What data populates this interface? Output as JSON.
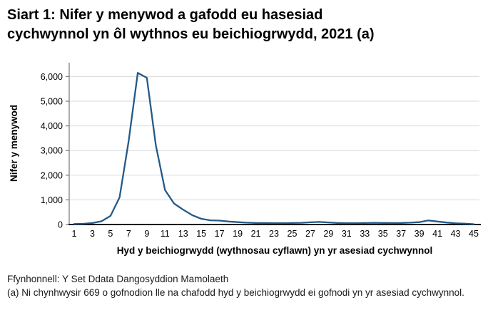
{
  "title": "Siart 1: Nifer y menywod a gafodd eu hasesiad cychwynnol yn ôl wythnos eu beichiogrwydd, 2021 (a)",
  "chart_data": {
    "type": "line",
    "title": "Siart 1: Nifer y menywod a gafodd eu hasesiad cychwynnol yn ôl wythnos eu beichiogrwydd, 2021 (a)",
    "xlabel": "Hyd y beichiogrwydd (wythnosau cyflawn) yn yr asesiad cychwynnol",
    "ylabel": "Nifer y menywod",
    "x": [
      1,
      2,
      3,
      4,
      5,
      6,
      7,
      8,
      9,
      10,
      11,
      12,
      13,
      14,
      15,
      16,
      17,
      18,
      19,
      20,
      21,
      22,
      23,
      24,
      25,
      26,
      27,
      28,
      29,
      30,
      31,
      32,
      33,
      34,
      35,
      36,
      37,
      38,
      39,
      40,
      41,
      42,
      43,
      44,
      45
    ],
    "series": [
      {
        "name": "Nifer y menywod",
        "values": [
          20,
          30,
          60,
          130,
          350,
          1100,
          3400,
          6150,
          5950,
          3200,
          1400,
          850,
          600,
          380,
          230,
          170,
          160,
          120,
          95,
          75,
          65,
          60,
          55,
          55,
          60,
          70,
          90,
          105,
          85,
          65,
          55,
          55,
          60,
          70,
          65,
          60,
          65,
          75,
          95,
          165,
          120,
          80,
          50,
          35,
          15
        ]
      }
    ],
    "ylim": [
      0,
      6000
    ],
    "yticks": [
      0,
      1000,
      2000,
      3000,
      4000,
      5000,
      6000
    ],
    "ytick_labels": [
      "0",
      "1,000",
      "2,000",
      "3,000",
      "4,000",
      "5,000",
      "6,000"
    ],
    "xticks": [
      1,
      3,
      5,
      7,
      9,
      11,
      13,
      15,
      17,
      19,
      21,
      23,
      25,
      27,
      29,
      31,
      33,
      35,
      37,
      39,
      41,
      43,
      45
    ],
    "grid": "horizontal",
    "legend": "none"
  },
  "colors": {
    "line": "#255A87",
    "grid": "#D9D9D9",
    "y_axis": "#808080",
    "x_axis": "#000000",
    "text": "#000000"
  },
  "footer": {
    "source": "Ffynhonnell: Y Set Ddata Dangosyddion Mamolaeth",
    "footnote": "(a) Ni chynhwysir 669 o gofnodion lle na chafodd hyd y beichiogrwydd ei gofnodi yn yr asesiad cychwynnol."
  }
}
